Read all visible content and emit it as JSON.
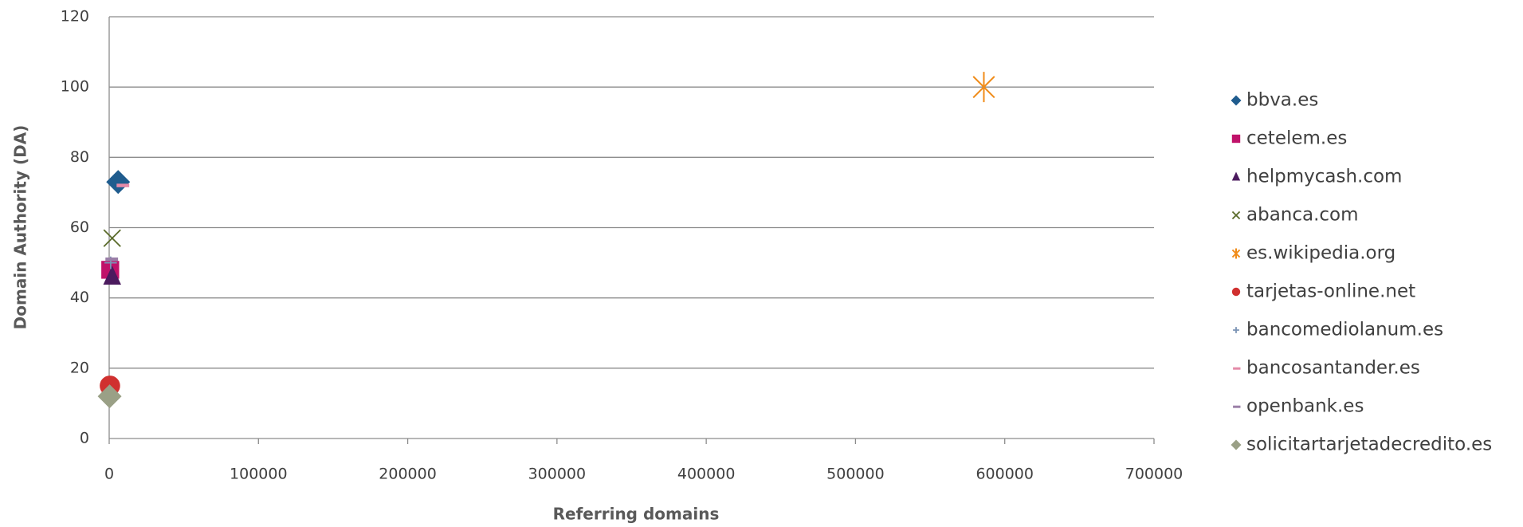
{
  "chart_data": {
    "type": "scatter",
    "x_label": "Referring domains",
    "y_label": "Domain Authority (DA)",
    "xlim": [
      0,
      700000
    ],
    "xticks": [
      0,
      100000,
      200000,
      300000,
      400000,
      500000,
      600000,
      700000
    ],
    "ylim": [
      0,
      120
    ],
    "yticks": [
      0,
      20,
      40,
      60,
      80,
      100,
      120
    ],
    "grid": true,
    "legend": "right",
    "series": [
      {
        "name": "bbva.es",
        "color": "#1f5c8e",
        "marker": "diamond",
        "x": [
          6000
        ],
        "values": [
          73
        ]
      },
      {
        "name": "cetelem.es",
        "color": "#c0126a",
        "marker": "square",
        "x": [
          700
        ],
        "values": [
          48
        ]
      },
      {
        "name": "helpmycash.com",
        "color": "#4b1a5e",
        "marker": "triangle",
        "x": [
          2000
        ],
        "values": [
          46
        ]
      },
      {
        "name": "abanca.com",
        "color": "#5a6b2a",
        "marker": "x",
        "x": [
          2000
        ],
        "values": [
          57
        ]
      },
      {
        "name": "es.wikipedia.org",
        "color": "#f08c1a",
        "marker": "star",
        "x": [
          586000
        ],
        "values": [
          100
        ]
      },
      {
        "name": "tarjetas-online.net",
        "color": "#d0302f",
        "marker": "circle",
        "x": [
          500
        ],
        "values": [
          15
        ]
      },
      {
        "name": "bancomediolanum.es",
        "color": "#7b93b5",
        "marker": "plus",
        "x": [
          1000
        ],
        "values": [
          50
        ]
      },
      {
        "name": "bancosantander.es",
        "color": "#e48aa8",
        "marker": "dash",
        "x": [
          8500
        ],
        "values": [
          72
        ]
      },
      {
        "name": "openbank.es",
        "color": "#9b7fa8",
        "marker": "dash",
        "x": [
          1000
        ],
        "values": [
          51
        ]
      },
      {
        "name": "solicitartarjetadecredito.es",
        "color": "#9aa086",
        "marker": "diamond",
        "x": [
          300
        ],
        "values": [
          12
        ]
      }
    ]
  }
}
